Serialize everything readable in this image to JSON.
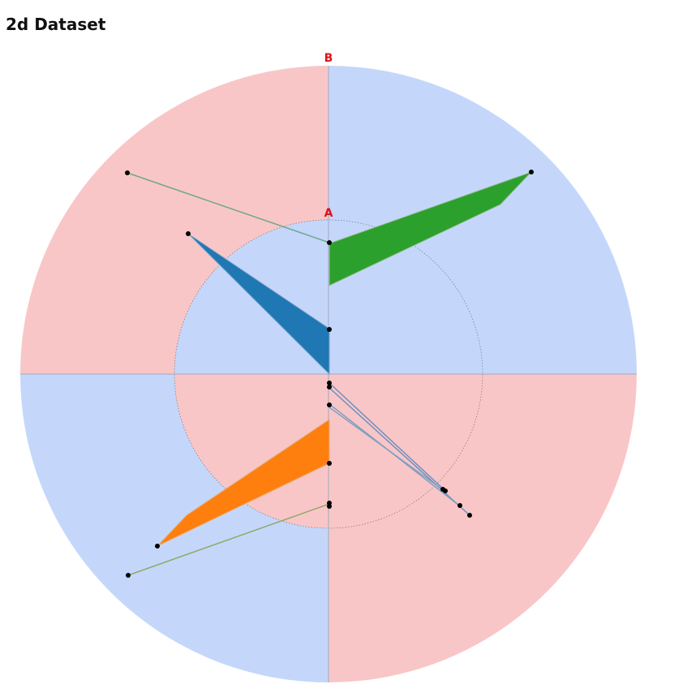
{
  "header": {
    "title": "2d Dataset"
  },
  "axes": {
    "outer": "B",
    "inner": "A"
  }
}
